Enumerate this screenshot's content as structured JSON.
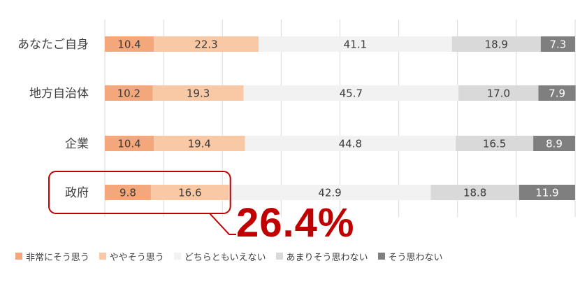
{
  "chart_data": {
    "type": "bar",
    "orientation": "horizontal",
    "stacked": true,
    "categories": [
      "あなたご自身",
      "地方自治体",
      "企業",
      "政府"
    ],
    "series": [
      {
        "name": "非常にそう思う",
        "color": "#f4a77a",
        "label_color": "#3a3a3a",
        "values": [
          10.4,
          10.2,
          10.4,
          9.8
        ]
      },
      {
        "name": "ややそう思う",
        "color": "#f9c8a5",
        "label_color": "#3a3a3a",
        "values": [
          22.3,
          19.3,
          19.4,
          16.6
        ]
      },
      {
        "name": "どちらともいえない",
        "color": "#f2f2f2",
        "label_color": "#3a3a3a",
        "values": [
          41.1,
          45.7,
          44.8,
          42.9
        ]
      },
      {
        "name": "あまりそう思わない",
        "color": "#d9d9d9",
        "label_color": "#3a3a3a",
        "values": [
          18.9,
          17.0,
          16.5,
          18.8
        ]
      },
      {
        "name": "そう思わない",
        "color": "#7f7f7f",
        "label_color": "#ffffff",
        "values": [
          7.3,
          7.9,
          8.9,
          11.9
        ]
      }
    ],
    "xlim": [
      0,
      100
    ],
    "grid": "vertical",
    "legend_position": "bottom",
    "highlight": {
      "category": "政府",
      "color": "#c00000",
      "text": "26.4%"
    }
  }
}
